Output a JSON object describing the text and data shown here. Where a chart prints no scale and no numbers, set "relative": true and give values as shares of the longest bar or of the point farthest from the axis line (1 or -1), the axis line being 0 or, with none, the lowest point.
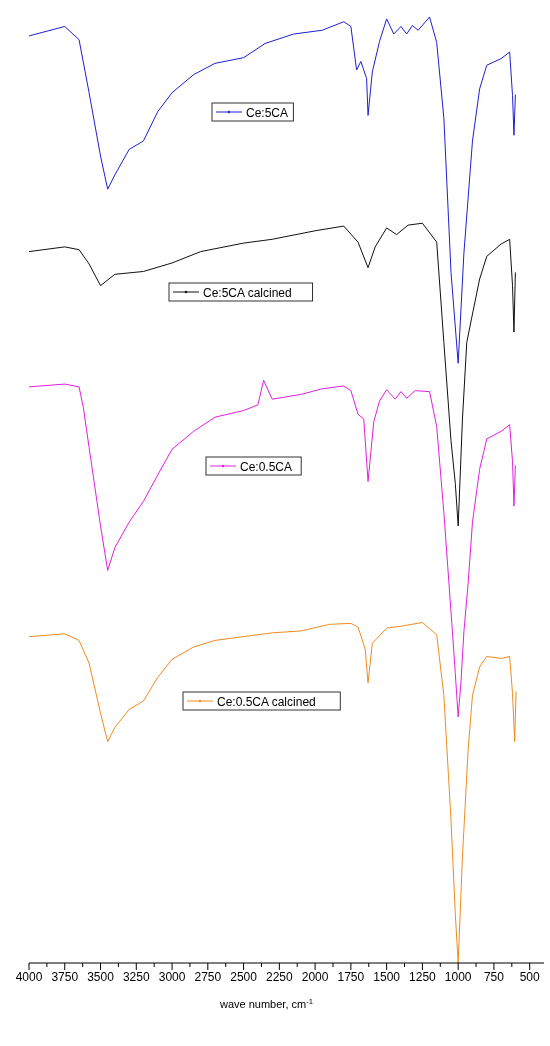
{
  "chart_data": {
    "type": "line",
    "xlabel": "wave number, cm$^{-1}$",
    "relative": true,
    "legend": "center",
    "xlim": [
      4000,
      400
    ],
    "xticks": [
      4000,
      {
        "value": 3875,
        "label": null
      },
      3750,
      {
        "value": 3625,
        "label": null
      },
      3500,
      {
        "value": 3375,
        "label": null
      },
      3250,
      {
        "value": 3125,
        "label": null
      },
      3000,
      {
        "value": 2875,
        "label": null
      },
      2750,
      {
        "value": 2625,
        "label": null
      },
      2500,
      {
        "value": 2375,
        "label": null
      },
      2250,
      {
        "value": 2125,
        "label": null
      },
      2000,
      {
        "value": 1875,
        "label": null
      },
      1750,
      {
        "value": 1625,
        "label": null
      },
      1500,
      {
        "value": 1375,
        "label": null
      },
      1250,
      {
        "value": 1125,
        "label": null
      },
      1000,
      {
        "value": 875,
        "label": null
      },
      750,
      {
        "value": 625,
        "label": null
      },
      500
    ],
    "series": [
      {
        "name": "Ce:5CA",
        "color": "#1f1fd0",
        "x": [
          4000,
          3750,
          3650,
          3580,
          3500,
          3450,
          3400,
          3300,
          3200,
          3100,
          3000,
          2850,
          2700,
          2500,
          2350,
          2150,
          1950,
          1800,
          1750,
          1710,
          1680,
          1640,
          1630,
          1600,
          1550,
          1500,
          1450,
          1400,
          1360,
          1320,
          1280,
          1200,
          1150,
          1100,
          1050,
          1000,
          960,
          900,
          850,
          800,
          700,
          640,
          620,
          610,
          600
        ],
        "values": [
          0.98,
          0.99,
          0.976,
          0.92,
          0.853,
          0.818,
          0.833,
          0.86,
          0.869,
          0.9,
          0.92,
          0.939,
          0.951,
          0.957,
          0.972,
          0.982,
          0.986,
          0.995,
          0.99,
          0.944,
          0.953,
          0.935,
          0.896,
          0.942,
          0.974,
          0.998,
          0.982,
          0.99,
          0.982,
          0.991,
          0.986,
          1,
          0.973,
          0.893,
          0.73,
          0.634,
          0.75,
          0.869,
          0.924,
          0.949,
          0.956,
          0.963,
          0.917,
          0.875,
          0.918
        ]
      },
      {
        "name": "Ce:5CA calcined",
        "color": "#111111",
        "x": [
          4000,
          3750,
          3650,
          3580,
          3500,
          3400,
          3200,
          3000,
          2800,
          2500,
          2300,
          2000,
          1800,
          1700,
          1630,
          1580,
          1500,
          1430,
          1350,
          1250,
          1150,
          1100,
          1050,
          1020,
          1000,
          970,
          940,
          900,
          850,
          800,
          700,
          640,
          620,
          610,
          600
        ],
        "values": [
          0.752,
          0.757,
          0.754,
          0.739,
          0.716,
          0.728,
          0.731,
          0.74,
          0.752,
          0.761,
          0.765,
          0.774,
          0.779,
          0.762,
          0.735,
          0.757,
          0.777,
          0.77,
          0.78,
          0.782,
          0.762,
          0.656,
          0.552,
          0.507,
          0.462,
          0.575,
          0.656,
          0.686,
          0.723,
          0.747,
          0.76,
          0.765,
          0.716,
          0.667,
          0.73
        ]
      },
      {
        "name": "Ce:0.5CA",
        "color": "#e020e0",
        "x": [
          4000,
          3750,
          3650,
          3620,
          3580,
          3500,
          3450,
          3400,
          3300,
          3200,
          3100,
          3000,
          2850,
          2700,
          2500,
          2400,
          2360,
          2300,
          2100,
          1950,
          1800,
          1750,
          1700,
          1660,
          1630,
          1590,
          1550,
          1500,
          1440,
          1400,
          1360,
          1300,
          1200,
          1150,
          1100,
          1040,
          1020,
          1000,
          980,
          960,
          930,
          900,
          850,
          800,
          700,
          640,
          620,
          610,
          600
        ],
        "values": [
          0.609,
          0.612,
          0.609,
          0.587,
          0.545,
          0.462,
          0.415,
          0.439,
          0.466,
          0.488,
          0.516,
          0.543,
          0.562,
          0.577,
          0.584,
          0.59,
          0.616,
          0.596,
          0.601,
          0.607,
          0.61,
          0.605,
          0.58,
          0.575,
          0.509,
          0.572,
          0.594,
          0.606,
          0.596,
          0.604,
          0.597,
          0.605,
          0.604,
          0.567,
          0.476,
          0.35,
          0.306,
          0.26,
          0.298,
          0.35,
          0.402,
          0.466,
          0.522,
          0.554,
          0.562,
          0.569,
          0.53,
          0.483,
          0.526
        ]
      },
      {
        "name": "Ce:0.5CA calcined",
        "color": "#f08c1e",
        "x": [
          4000,
          3750,
          3650,
          3580,
          3500,
          3450,
          3400,
          3300,
          3200,
          3100,
          3000,
          2850,
          2700,
          2500,
          2300,
          2100,
          1900,
          1750,
          1700,
          1650,
          1630,
          1600,
          1500,
          1400,
          1250,
          1150,
          1100,
          1050,
          1020,
          1000,
          970,
          930,
          900,
          850,
          800,
          700,
          640,
          620,
          605,
          595
        ],
        "values": [
          0.345,
          0.348,
          0.341,
          0.317,
          0.264,
          0.234,
          0.249,
          0.268,
          0.277,
          0.302,
          0.321,
          0.334,
          0.341,
          0.345,
          0.349,
          0.351,
          0.358,
          0.359,
          0.355,
          0.332,
          0.296,
          0.338,
          0.354,
          0.356,
          0.36,
          0.347,
          0.283,
          0.151,
          0.052,
          0,
          0.113,
          0.226,
          0.283,
          0.313,
          0.324,
          0.322,
          0.324,
          0.285,
          0.234,
          0.287
        ]
      }
    ]
  }
}
